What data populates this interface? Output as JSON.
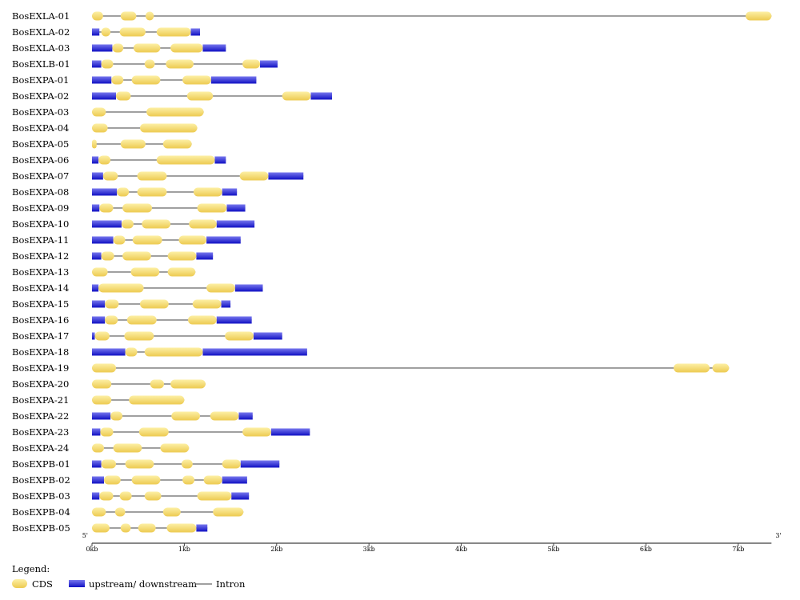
{
  "genes": [
    {
      "name": "BosEXLA-01",
      "length": 7.36,
      "segments": [
        {
          "t": "cds",
          "s": 0,
          "e": 0.12
        },
        {
          "t": "cds",
          "s": 0.31,
          "e": 0.48
        },
        {
          "t": "cds",
          "s": 0.58,
          "e": 0.67
        },
        {
          "t": "cds",
          "s": 7.08,
          "e": 7.36
        }
      ]
    },
    {
      "name": "BosEXLA-02",
      "length": 1.17,
      "segments": [
        {
          "t": "utr",
          "s": 0,
          "e": 0.08
        },
        {
          "t": "cds",
          "s": 0.1,
          "e": 0.2
        },
        {
          "t": "cds",
          "s": 0.3,
          "e": 0.58
        },
        {
          "t": "cds",
          "s": 0.7,
          "e": 1.07
        },
        {
          "t": "utr",
          "s": 1.07,
          "e": 1.17
        }
      ]
    },
    {
      "name": "BosEXLA-03",
      "length": 1.45,
      "segments": [
        {
          "t": "utr",
          "s": 0,
          "e": 0.22
        },
        {
          "t": "cds",
          "s": 0.22,
          "e": 0.34
        },
        {
          "t": "cds",
          "s": 0.45,
          "e": 0.74
        },
        {
          "t": "cds",
          "s": 0.85,
          "e": 1.2
        },
        {
          "t": "utr",
          "s": 1.2,
          "e": 1.45
        }
      ]
    },
    {
      "name": "BosEXLB-01",
      "length": 2.01,
      "segments": [
        {
          "t": "utr",
          "s": 0,
          "e": 0.1
        },
        {
          "t": "cds",
          "s": 0.1,
          "e": 0.23
        },
        {
          "t": "cds",
          "s": 0.57,
          "e": 0.68
        },
        {
          "t": "cds",
          "s": 0.8,
          "e": 1.1
        },
        {
          "t": "cds",
          "s": 1.63,
          "e": 1.82
        },
        {
          "t": "utr",
          "s": 1.82,
          "e": 2.01
        }
      ]
    },
    {
      "name": "BosEXPA-01",
      "length": 1.78,
      "segments": [
        {
          "t": "utr",
          "s": 0,
          "e": 0.21
        },
        {
          "t": "cds",
          "s": 0.21,
          "e": 0.34
        },
        {
          "t": "cds",
          "s": 0.43,
          "e": 0.74
        },
        {
          "t": "cds",
          "s": 0.98,
          "e": 1.29
        },
        {
          "t": "utr",
          "s": 1.29,
          "e": 1.78
        }
      ]
    },
    {
      "name": "BosEXPA-02",
      "length": 2.6,
      "segments": [
        {
          "t": "utr",
          "s": 0,
          "e": 0.26
        },
        {
          "t": "cds",
          "s": 0.26,
          "e": 0.42
        },
        {
          "t": "cds",
          "s": 1.03,
          "e": 1.31
        },
        {
          "t": "cds",
          "s": 2.06,
          "e": 2.37
        },
        {
          "t": "utr",
          "s": 2.37,
          "e": 2.6
        }
      ]
    },
    {
      "name": "BosEXPA-03",
      "length": 1.21,
      "segments": [
        {
          "t": "cds",
          "s": 0,
          "e": 0.15
        },
        {
          "t": "cds",
          "s": 0.59,
          "e": 1.21
        }
      ]
    },
    {
      "name": "BosEXPA-04",
      "length": 1.14,
      "segments": [
        {
          "t": "cds",
          "s": 0,
          "e": 0.17
        },
        {
          "t": "cds",
          "s": 0.52,
          "e": 1.14
        }
      ]
    },
    {
      "name": "BosEXPA-05",
      "length": 1.08,
      "segments": [
        {
          "t": "cds",
          "s": 0,
          "e": 0.05
        },
        {
          "t": "cds",
          "s": 0.31,
          "e": 0.58
        },
        {
          "t": "cds",
          "s": 0.77,
          "e": 1.08
        }
      ]
    },
    {
      "name": "BosEXPA-06",
      "length": 1.45,
      "segments": [
        {
          "t": "utr",
          "s": 0,
          "e": 0.07
        },
        {
          "t": "cds",
          "s": 0.07,
          "e": 0.2
        },
        {
          "t": "cds",
          "s": 0.7,
          "e": 1.33
        },
        {
          "t": "utr",
          "s": 1.33,
          "e": 1.45
        }
      ]
    },
    {
      "name": "BosEXPA-07",
      "length": 2.29,
      "segments": [
        {
          "t": "utr",
          "s": 0,
          "e": 0.12
        },
        {
          "t": "cds",
          "s": 0.12,
          "e": 0.28
        },
        {
          "t": "cds",
          "s": 0.49,
          "e": 0.81
        },
        {
          "t": "cds",
          "s": 1.6,
          "e": 1.91
        },
        {
          "t": "utr",
          "s": 1.91,
          "e": 2.29
        }
      ]
    },
    {
      "name": "BosEXPA-08",
      "length": 1.57,
      "segments": [
        {
          "t": "utr",
          "s": 0,
          "e": 0.27
        },
        {
          "t": "cds",
          "s": 0.27,
          "e": 0.4
        },
        {
          "t": "cds",
          "s": 0.49,
          "e": 0.81
        },
        {
          "t": "cds",
          "s": 1.1,
          "e": 1.41
        },
        {
          "t": "utr",
          "s": 1.41,
          "e": 1.57
        }
      ]
    },
    {
      "name": "BosEXPA-09",
      "length": 1.66,
      "segments": [
        {
          "t": "utr",
          "s": 0,
          "e": 0.08
        },
        {
          "t": "cds",
          "s": 0.08,
          "e": 0.23
        },
        {
          "t": "cds",
          "s": 0.33,
          "e": 0.65
        },
        {
          "t": "cds",
          "s": 1.14,
          "e": 1.46
        },
        {
          "t": "utr",
          "s": 1.46,
          "e": 1.66
        }
      ]
    },
    {
      "name": "BosEXPA-10",
      "length": 1.76,
      "segments": [
        {
          "t": "utr",
          "s": 0,
          "e": 0.32
        },
        {
          "t": "cds",
          "s": 0.32,
          "e": 0.45
        },
        {
          "t": "cds",
          "s": 0.54,
          "e": 0.85
        },
        {
          "t": "cds",
          "s": 1.05,
          "e": 1.35
        },
        {
          "t": "utr",
          "s": 1.35,
          "e": 1.76
        }
      ]
    },
    {
      "name": "BosEXPA-11",
      "length": 1.61,
      "segments": [
        {
          "t": "utr",
          "s": 0,
          "e": 0.23
        },
        {
          "t": "cds",
          "s": 0.23,
          "e": 0.36
        },
        {
          "t": "cds",
          "s": 0.44,
          "e": 0.76
        },
        {
          "t": "cds",
          "s": 0.94,
          "e": 1.24
        },
        {
          "t": "utr",
          "s": 1.24,
          "e": 1.61
        }
      ]
    },
    {
      "name": "BosEXPA-12",
      "length": 1.31,
      "segments": [
        {
          "t": "utr",
          "s": 0,
          "e": 0.1
        },
        {
          "t": "cds",
          "s": 0.1,
          "e": 0.24
        },
        {
          "t": "cds",
          "s": 0.33,
          "e": 0.64
        },
        {
          "t": "cds",
          "s": 0.82,
          "e": 1.13
        },
        {
          "t": "utr",
          "s": 1.13,
          "e": 1.31
        }
      ]
    },
    {
      "name": "BosEXPA-13",
      "length": 1.12,
      "segments": [
        {
          "t": "cds",
          "s": 0,
          "e": 0.17
        },
        {
          "t": "cds",
          "s": 0.42,
          "e": 0.73
        },
        {
          "t": "cds",
          "s": 0.82,
          "e": 1.12
        }
      ]
    },
    {
      "name": "BosEXPA-14",
      "length": 1.85,
      "segments": [
        {
          "t": "utr",
          "s": 0,
          "e": 0.07
        },
        {
          "t": "cds",
          "s": 0.07,
          "e": 0.56
        },
        {
          "t": "cds",
          "s": 1.24,
          "e": 1.55
        },
        {
          "t": "utr",
          "s": 1.55,
          "e": 1.85
        }
      ]
    },
    {
      "name": "BosEXPA-15",
      "length": 1.5,
      "segments": [
        {
          "t": "utr",
          "s": 0,
          "e": 0.14
        },
        {
          "t": "cds",
          "s": 0.14,
          "e": 0.29
        },
        {
          "t": "cds",
          "s": 0.52,
          "e": 0.83
        },
        {
          "t": "cds",
          "s": 1.09,
          "e": 1.4
        },
        {
          "t": "utr",
          "s": 1.4,
          "e": 1.5
        }
      ]
    },
    {
      "name": "BosEXPA-16",
      "length": 1.73,
      "segments": [
        {
          "t": "utr",
          "s": 0,
          "e": 0.14
        },
        {
          "t": "cds",
          "s": 0.14,
          "e": 0.28
        },
        {
          "t": "cds",
          "s": 0.38,
          "e": 0.7
        },
        {
          "t": "cds",
          "s": 1.04,
          "e": 1.35
        },
        {
          "t": "utr",
          "s": 1.35,
          "e": 1.73
        }
      ]
    },
    {
      "name": "BosEXPA-17",
      "length": 2.06,
      "segments": [
        {
          "t": "utr",
          "s": 0,
          "e": 0.03
        },
        {
          "t": "cds",
          "s": 0.03,
          "e": 0.19
        },
        {
          "t": "cds",
          "s": 0.35,
          "e": 0.67
        },
        {
          "t": "cds",
          "s": 1.44,
          "e": 1.75
        },
        {
          "t": "utr",
          "s": 1.75,
          "e": 2.06
        }
      ]
    },
    {
      "name": "BosEXPA-18",
      "length": 2.33,
      "segments": [
        {
          "t": "utr",
          "s": 0,
          "e": 0.36
        },
        {
          "t": "cds",
          "s": 0.36,
          "e": 0.49
        },
        {
          "t": "cds",
          "s": 0.57,
          "e": 1.2
        },
        {
          "t": "utr",
          "s": 1.2,
          "e": 2.33
        }
      ]
    },
    {
      "name": "BosEXPA-19",
      "length": 6.9,
      "segments": [
        {
          "t": "cds",
          "s": 0,
          "e": 0.26
        },
        {
          "t": "cds",
          "s": 6.3,
          "e": 6.69
        },
        {
          "t": "cds",
          "s": 6.72,
          "e": 6.9
        }
      ]
    },
    {
      "name": "BosEXPA-20",
      "length": 1.23,
      "segments": [
        {
          "t": "cds",
          "s": 0,
          "e": 0.21
        },
        {
          "t": "cds",
          "s": 0.63,
          "e": 0.78
        },
        {
          "t": "cds",
          "s": 0.85,
          "e": 1.23
        }
      ]
    },
    {
      "name": "BosEXPA-21",
      "length": 1.0,
      "segments": [
        {
          "t": "cds",
          "s": 0,
          "e": 0.21
        },
        {
          "t": "cds",
          "s": 0.4,
          "e": 1.0
        }
      ]
    },
    {
      "name": "BosEXPA-22",
      "length": 1.74,
      "segments": [
        {
          "t": "utr",
          "s": 0,
          "e": 0.2
        },
        {
          "t": "cds",
          "s": 0.2,
          "e": 0.33
        },
        {
          "t": "cds",
          "s": 0.86,
          "e": 1.17
        },
        {
          "t": "cds",
          "s": 1.28,
          "e": 1.59
        },
        {
          "t": "utr",
          "s": 1.59,
          "e": 1.74
        }
      ]
    },
    {
      "name": "BosEXPA-23",
      "length": 2.36,
      "segments": [
        {
          "t": "utr",
          "s": 0,
          "e": 0.09
        },
        {
          "t": "cds",
          "s": 0.09,
          "e": 0.23
        },
        {
          "t": "cds",
          "s": 0.51,
          "e": 0.83
        },
        {
          "t": "cds",
          "s": 1.63,
          "e": 1.94
        },
        {
          "t": "utr",
          "s": 1.94,
          "e": 2.36
        }
      ]
    },
    {
      "name": "BosEXPA-24",
      "length": 1.05,
      "segments": [
        {
          "t": "cds",
          "s": 0,
          "e": 0.13
        },
        {
          "t": "cds",
          "s": 0.23,
          "e": 0.54
        },
        {
          "t": "cds",
          "s": 0.74,
          "e": 1.05
        }
      ]
    },
    {
      "name": "BosEXPB-01",
      "length": 2.03,
      "segments": [
        {
          "t": "utr",
          "s": 0,
          "e": 0.1
        },
        {
          "t": "cds",
          "s": 0.1,
          "e": 0.26
        },
        {
          "t": "cds",
          "s": 0.36,
          "e": 0.67
        },
        {
          "t": "cds",
          "s": 0.97,
          "e": 1.09
        },
        {
          "t": "cds",
          "s": 1.41,
          "e": 1.61
        },
        {
          "t": "utr",
          "s": 1.61,
          "e": 2.03
        }
      ]
    },
    {
      "name": "BosEXPB-02",
      "length": 1.68,
      "segments": [
        {
          "t": "utr",
          "s": 0,
          "e": 0.13
        },
        {
          "t": "cds",
          "s": 0.13,
          "e": 0.31
        },
        {
          "t": "cds",
          "s": 0.43,
          "e": 0.74
        },
        {
          "t": "cds",
          "s": 0.98,
          "e": 1.11
        },
        {
          "t": "cds",
          "s": 1.21,
          "e": 1.41
        },
        {
          "t": "utr",
          "s": 1.41,
          "e": 1.68
        }
      ]
    },
    {
      "name": "BosEXPB-03",
      "length": 1.7,
      "segments": [
        {
          "t": "utr",
          "s": 0,
          "e": 0.08
        },
        {
          "t": "cds",
          "s": 0.08,
          "e": 0.23
        },
        {
          "t": "cds",
          "s": 0.3,
          "e": 0.43
        },
        {
          "t": "cds",
          "s": 0.57,
          "e": 0.75
        },
        {
          "t": "cds",
          "s": 1.14,
          "e": 1.51
        },
        {
          "t": "utr",
          "s": 1.51,
          "e": 1.7
        }
      ]
    },
    {
      "name": "BosEXPB-04",
      "length": 1.64,
      "segments": [
        {
          "t": "cds",
          "s": 0,
          "e": 0.15
        },
        {
          "t": "cds",
          "s": 0.25,
          "e": 0.36
        },
        {
          "t": "cds",
          "s": 0.77,
          "e": 0.96
        },
        {
          "t": "cds",
          "s": 1.31,
          "e": 1.64
        }
      ]
    },
    {
      "name": "BosEXPB-05",
      "length": 1.25,
      "segments": [
        {
          "t": "cds",
          "s": 0,
          "e": 0.19
        },
        {
          "t": "cds",
          "s": 0.31,
          "e": 0.42
        },
        {
          "t": "cds",
          "s": 0.5,
          "e": 0.69
        },
        {
          "t": "cds",
          "s": 0.81,
          "e": 1.13
        },
        {
          "t": "utr",
          "s": 1.13,
          "e": 1.25
        }
      ]
    }
  ],
  "axis": {
    "five_prime": "5'",
    "three_prime": "3'",
    "max": 7.36,
    "ticks": [
      {
        "value": 0,
        "label": "0kb"
      },
      {
        "value": 1,
        "label": "1kb"
      },
      {
        "value": 2,
        "label": "2kb"
      },
      {
        "value": 3,
        "label": "3kb"
      },
      {
        "value": 4,
        "label": "4kb"
      },
      {
        "value": 5,
        "label": "5kb"
      },
      {
        "value": 6,
        "label": "6kb"
      },
      {
        "value": 7,
        "label": "7kb"
      }
    ]
  },
  "legend": {
    "title": "Legend:",
    "cds_label": "CDS",
    "utr_label": "upstream/ downstream",
    "intron_label": "Intron"
  },
  "colors": {
    "cds_light": "#fdf0a6",
    "cds_dark": "#edca50",
    "utr_light": "#7777ee",
    "utr_dark": "#1010c4",
    "intron": "#808080",
    "axis": "#404040"
  }
}
